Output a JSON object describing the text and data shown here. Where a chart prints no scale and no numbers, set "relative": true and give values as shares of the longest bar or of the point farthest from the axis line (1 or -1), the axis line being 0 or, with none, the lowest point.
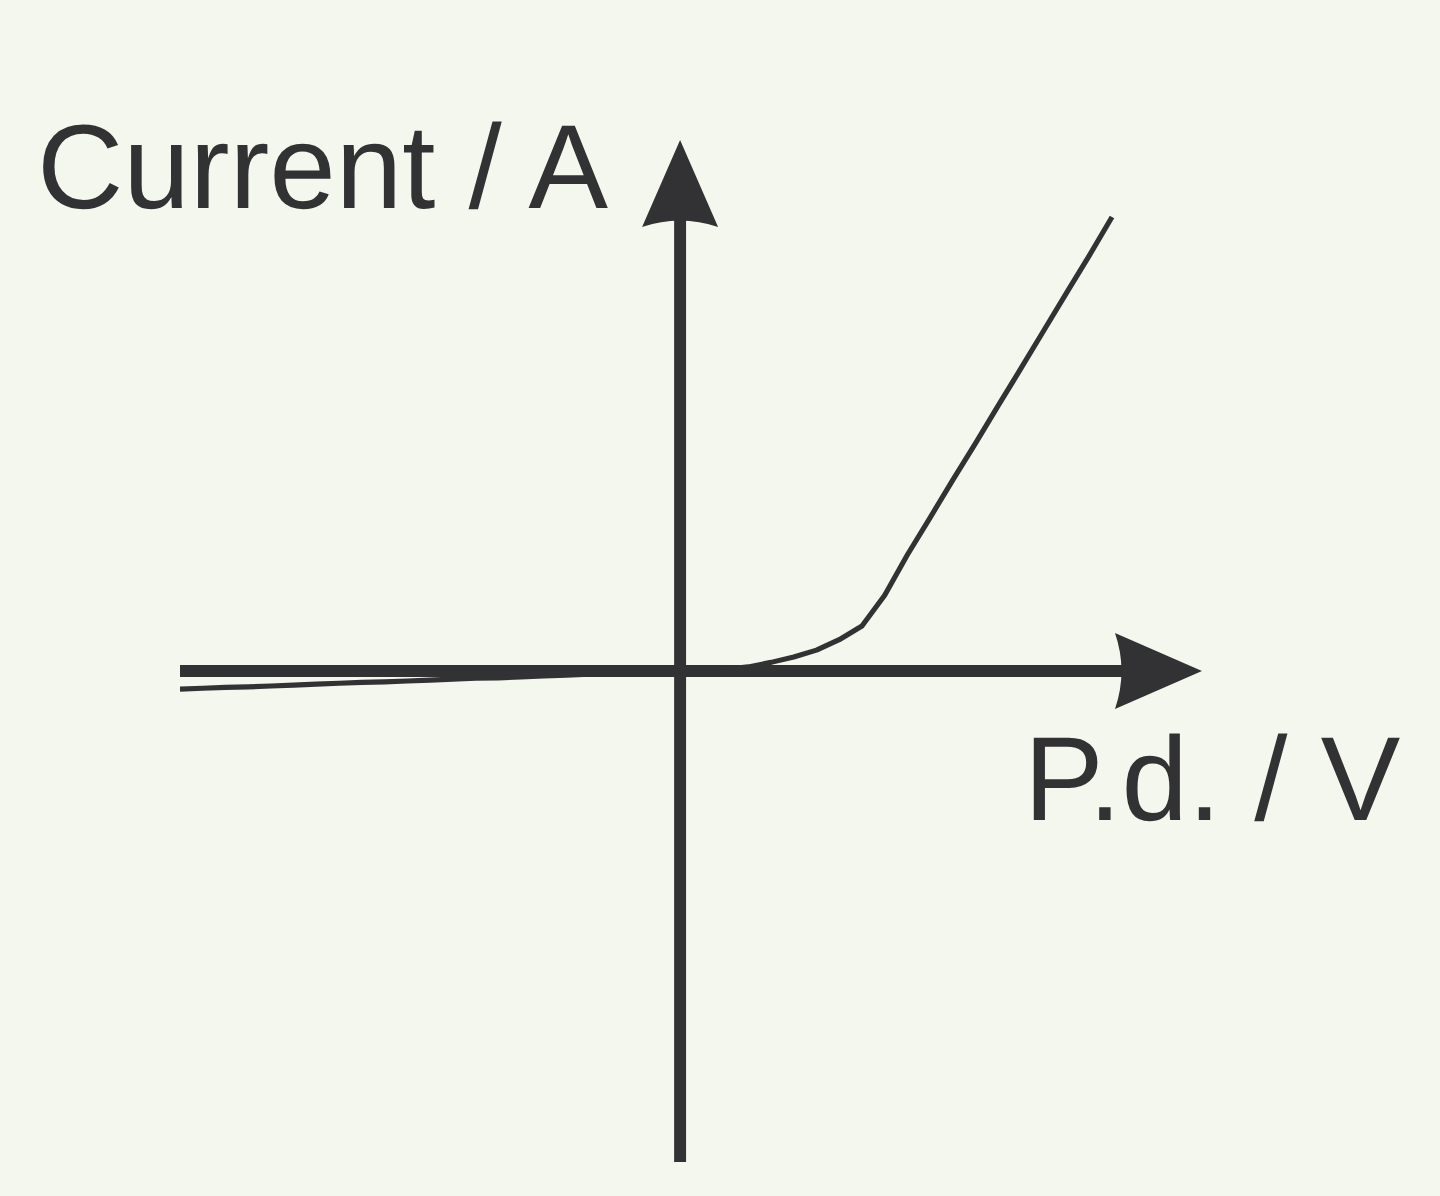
{
  "chart_data": {
    "type": "line",
    "xlabel": "P.d. / V",
    "ylabel": "Current / A",
    "relative": true,
    "color": "#323234",
    "categories": [
      null,
      null,
      null,
      null,
      null,
      null,
      null,
      null,
      null,
      null,
      null,
      null,
      null,
      null,
      null,
      null,
      null,
      null,
      null,
      null,
      null,
      null,
      null,
      null,
      null,
      null,
      null,
      null,
      null,
      null,
      null,
      null,
      null,
      null,
      null,
      null,
      null,
      null,
      null,
      null,
      null,
      null
    ],
    "values": [
      -0.04,
      -0.038,
      -0.036,
      -0.035,
      -0.033,
      -0.031,
      -0.029,
      -0.027,
      -0.025,
      -0.024,
      -0.022,
      -0.02,
      -0.018,
      -0.016,
      -0.015,
      -0.013,
      -0.011,
      -0.009,
      -0.007,
      -0.005,
      -0.004,
      -0.002,
      0,
      0.002,
      0.004,
      0.009,
      0.019,
      0.031,
      0.046,
      0.069,
      0.099,
      0.167,
      0.256,
      0.338,
      0.421,
      0.502,
      0.585,
      0.667,
      0.75,
      0.833,
      0.915,
      1
    ]
  }
}
